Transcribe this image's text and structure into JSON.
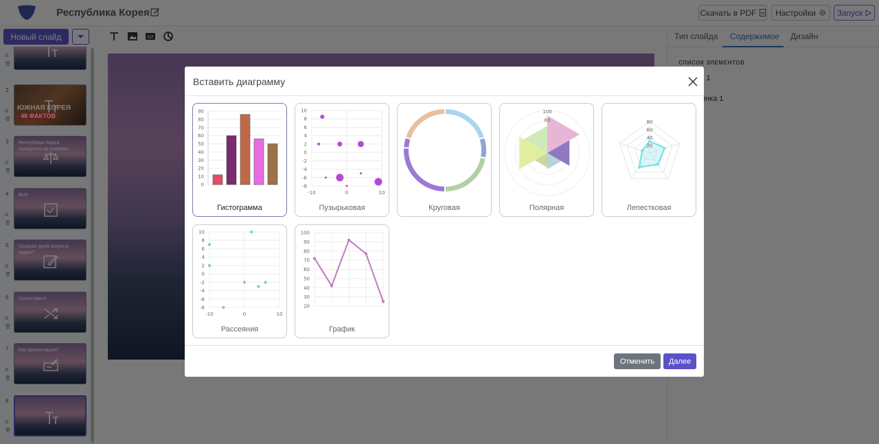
{
  "app": {
    "title": "Республика Корея",
    "buttons": {
      "pdf": "Скачать в PDF",
      "settings": "Настройки",
      "run": "Запуск"
    },
    "new_slide": "Новый слайд"
  },
  "right_panel": {
    "tabs": [
      "Тип слайда",
      "Содержимое",
      "Дизайн"
    ],
    "active_tab": "Содержимое",
    "elements_heading": "СПИСОК ЭЛЕМЕНТОВ",
    "elements": [
      "кст 1",
      "ртинка 1"
    ]
  },
  "slides": [
    {
      "num": "",
      "text": ""
    },
    {
      "num": "2",
      "text": ""
    },
    {
      "num": "3",
      "text": "Республика Корея находится на северно..."
    },
    {
      "num": "4",
      "text": "Всё!"
    },
    {
      "num": "5",
      "text": "Сколько дней отпуск в Корее?"
    },
    {
      "num": "6",
      "text": "Сопоставьте"
    },
    {
      "num": "7",
      "text": "Как презентация?"
    },
    {
      "num": "8",
      "text": ""
    }
  ],
  "slide2_banner": {
    "line1": "ЮЖНАЯ КОРЕЯ",
    "line2": "48 ФАКТОВ"
  },
  "modal": {
    "title": "Вставить диаграмму",
    "cancel": "Отменить",
    "next": "Далее",
    "chart_types": [
      "Гистограмма",
      "Пузырьковая",
      "Круговая",
      "Полярная",
      "Лепестковая",
      "Рассеяния",
      "График"
    ],
    "selected": "Гистограмма"
  },
  "chart_data": [
    {
      "type": "bar",
      "title": "Гистограмма",
      "values": [
        12,
        60,
        86,
        56,
        50
      ],
      "colors": [
        "#e0506b",
        "#7a2a6e",
        "#c0694a",
        "#e96be3",
        "#9c7248"
      ],
      "yticks": [
        0,
        10,
        20,
        30,
        40,
        50,
        60,
        70,
        80,
        90
      ],
      "ylim": [
        0,
        90
      ]
    },
    {
      "type": "scatter",
      "title": "Пузырьковая",
      "points": [
        [
          -7,
          8.5,
          3
        ],
        [
          -8,
          2,
          2
        ],
        [
          -2,
          2,
          3.5
        ],
        [
          4,
          2,
          4.5
        ],
        [
          -6,
          -6,
          1.5
        ],
        [
          -2,
          -6,
          5.5
        ],
        [
          0,
          -8,
          1.5
        ],
        [
          4,
          -5,
          1.5
        ],
        [
          9,
          -7,
          5.5
        ]
      ],
      "xticks": [
        -10,
        0,
        10
      ],
      "yticks": [
        10,
        8,
        6,
        4,
        2,
        0,
        -2,
        -4,
        -6,
        -8
      ],
      "xlim": [
        -10,
        10
      ],
      "ylim": [
        -8,
        10
      ]
    },
    {
      "type": "pie",
      "title": "Круговая",
      "values": [
        20,
        8,
        22,
        26,
        4,
        20
      ],
      "colors": [
        "#a9d5f0",
        "#8ea3d6",
        "#b3cfa5",
        "#9b7ad6",
        "#9b7ad6",
        "#e8c0a0"
      ]
    },
    {
      "type": "pie",
      "title": "Полярная",
      "values": [
        88,
        60,
        38,
        34,
        76,
        64
      ],
      "colors": [
        "#e8b5d6",
        "#8e79c4",
        "#b6d4d6",
        "#c9d7a3",
        "#dfef9f",
        "#cfeab8"
      ],
      "rticks": [
        100,
        80
      ]
    },
    {
      "type": "line",
      "title": "Лепестковая",
      "values": [
        30,
        40,
        35,
        45,
        20
      ],
      "color": "#6fe0e6",
      "rticks": [
        80,
        60,
        40,
        20
      ]
    },
    {
      "type": "scatter",
      "title": "Рассеяния",
      "points": [
        [
          -10,
          7
        ],
        [
          -10,
          2
        ],
        [
          -6,
          -8
        ],
        [
          0,
          -2
        ],
        [
          2,
          10
        ],
        [
          4,
          -3
        ],
        [
          6,
          -2
        ]
      ],
      "xticks": [
        -10,
        0,
        10
      ],
      "yticks": [
        10,
        8,
        6,
        4,
        2,
        0,
        -2,
        -4,
        -6,
        -8
      ],
      "xlim": [
        -10,
        10
      ],
      "ylim": [
        -8,
        10
      ]
    },
    {
      "type": "line",
      "title": "График",
      "values": [
        72,
        42,
        92,
        77,
        25
      ],
      "yticks": [
        100,
        90,
        80,
        70,
        60,
        50,
        40,
        30,
        20
      ],
      "ylim": [
        20,
        100
      ],
      "color": "#c079c0"
    }
  ]
}
